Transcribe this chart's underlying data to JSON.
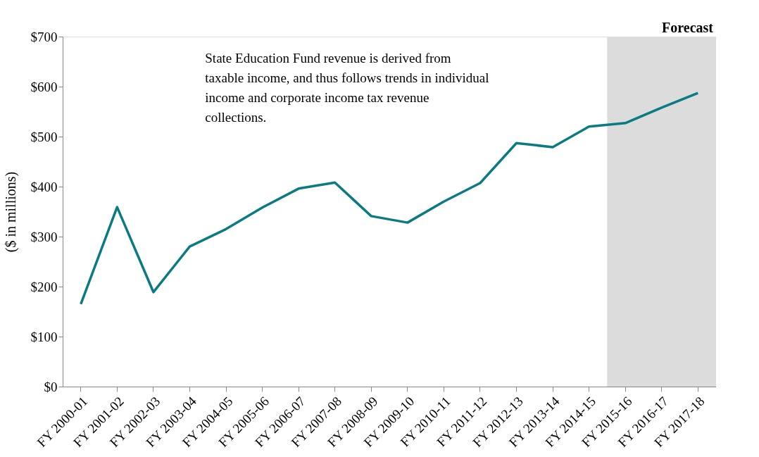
{
  "chart_data": {
    "type": "line",
    "categories": [
      "FY 2000-01",
      "FY 2001-02",
      "FY 2002-03",
      "FY 2003-04",
      "FY 2004-05",
      "FY 2005-06",
      "FY 2006-07",
      "FY 2007-08",
      "FY 2008-09",
      "FY 2009-10",
      "FY 2010-11",
      "FY 2011-12",
      "FY 2012-13",
      "FY 2013-14",
      "FY 2014-15",
      "FY 2015-16",
      "FY 2016-17",
      "FY 2017-18"
    ],
    "series": [
      {
        "color": "#0a7b83",
        "values": [
          165,
          359,
          189,
          280,
          315,
          358,
          396,
          408,
          341,
          328,
          370,
          407,
          487,
          479,
          520,
          527,
          558,
          587
        ]
      }
    ],
    "ylabel": "($ in millions)",
    "ylim": [
      0,
      700
    ],
    "yticks": [
      {
        "value": 0,
        "label": "$0"
      },
      {
        "value": 100,
        "label": "$100"
      },
      {
        "value": 200,
        "label": "$200"
      },
      {
        "value": 300,
        "label": "$300"
      },
      {
        "value": 400,
        "label": "$400"
      },
      {
        "value": 500,
        "label": "$500"
      },
      {
        "value": 600,
        "label": "$600"
      },
      {
        "value": 700,
        "label": "$700"
      }
    ],
    "bands": [
      {
        "axis": "x",
        "from": "FY 2015-16",
        "to": "FY 2017-18",
        "label": "Forecast",
        "color": "#dcdcdc"
      }
    ],
    "annotations": [
      "State Education Fund revenue is derived from\ntaxable income, and thus follows trends in individual\nincome and corporate income tax revenue\ncollections."
    ],
    "grid": false,
    "marker": "none",
    "line_style": "solid"
  }
}
